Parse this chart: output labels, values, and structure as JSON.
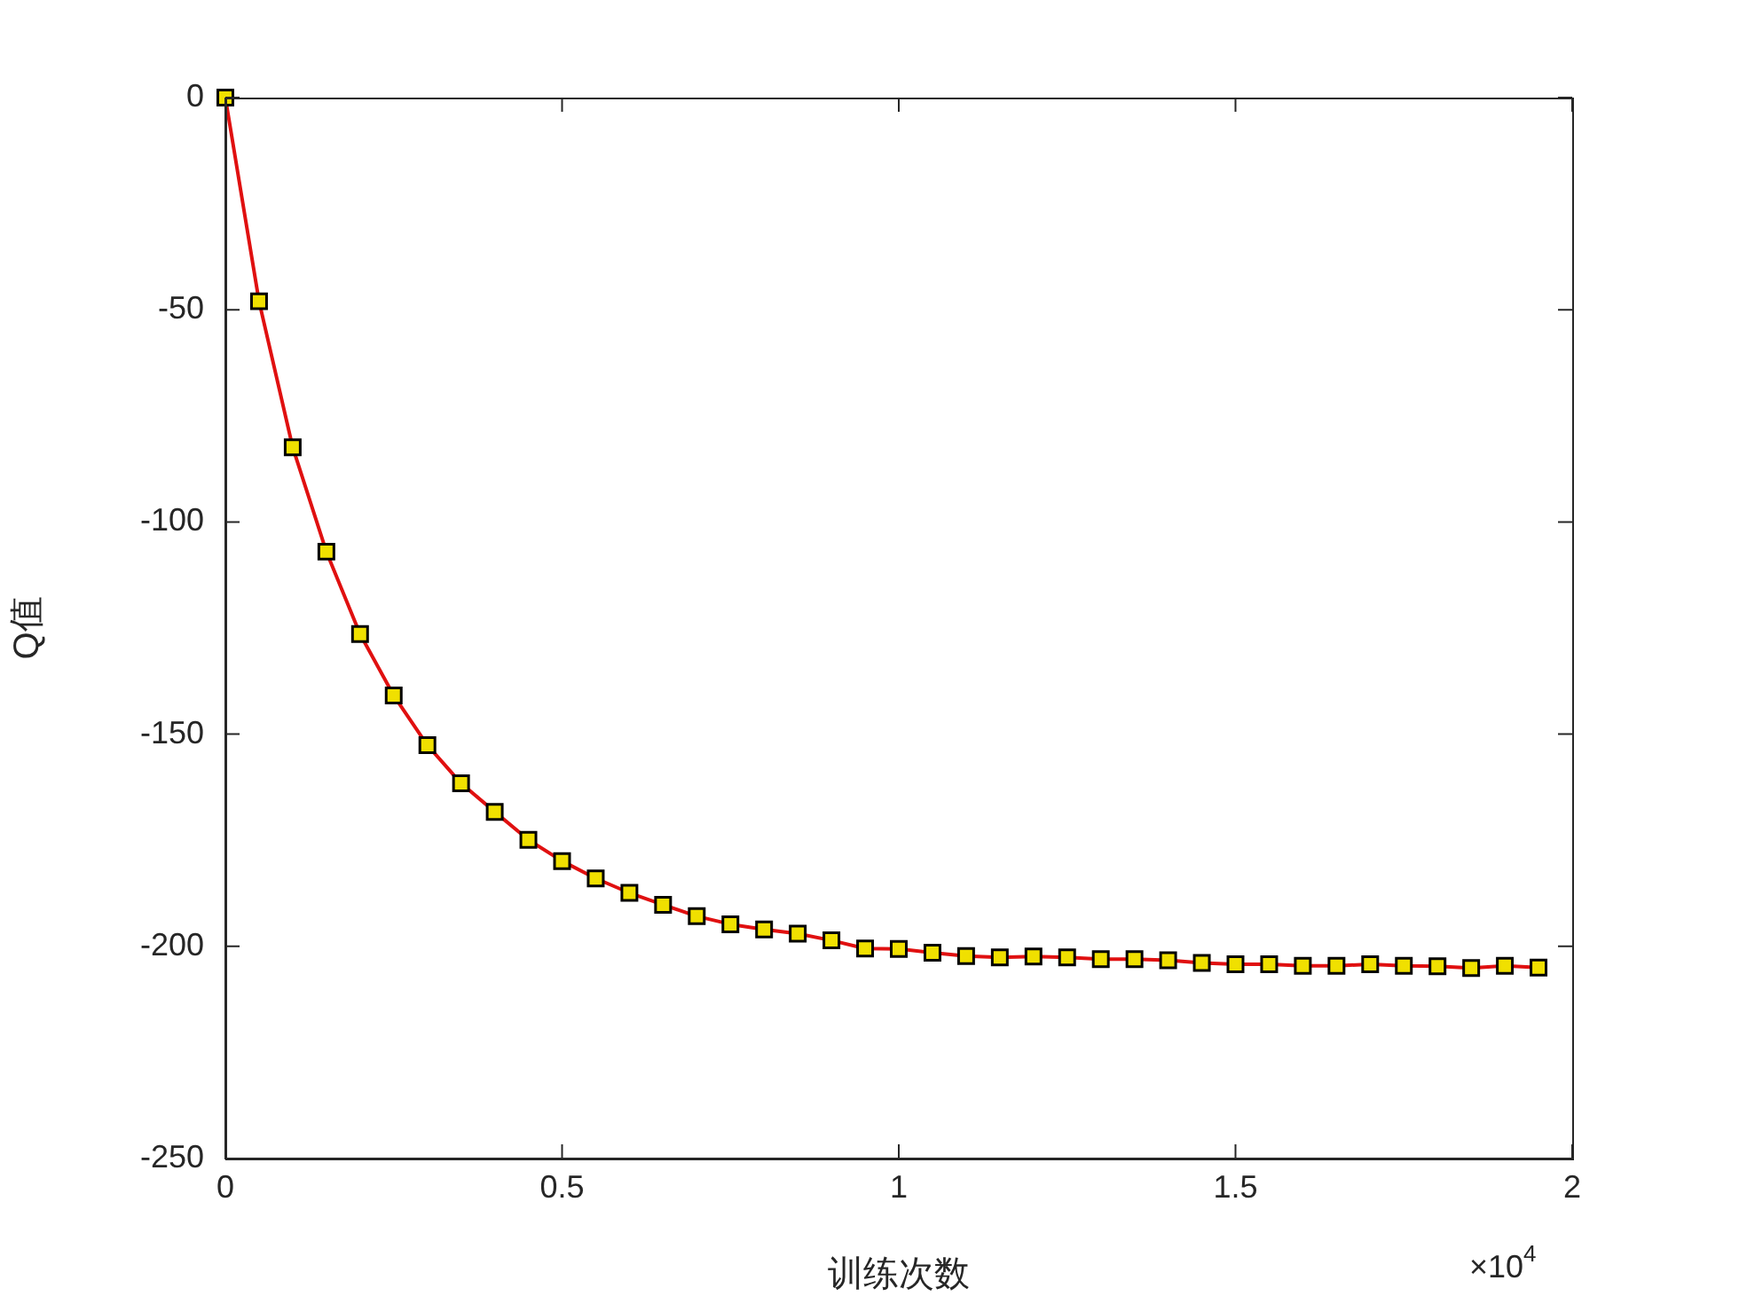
{
  "chart_data": {
    "type": "line",
    "xlabel": "训练次数",
    "ylabel": "Q值",
    "annotations": [
      "×10$^{4}$"
    ],
    "x": [
      0,
      0.05,
      0.1,
      0.15,
      0.2,
      0.25,
      0.3,
      0.35,
      0.4,
      0.45,
      0.5,
      0.55,
      0.6,
      0.65,
      0.7,
      0.75,
      0.8,
      0.85,
      0.9,
      0.95,
      1.0,
      1.05,
      1.1,
      1.15,
      1.2,
      1.25,
      1.3,
      1.35,
      1.4,
      1.45,
      1.5,
      1.55,
      1.6,
      1.65,
      1.7,
      1.75,
      1.8,
      1.85,
      1.9,
      1.95
    ],
    "series": [
      {
        "color": "#e01010",
        "values": [
          0,
          -48,
          -82.4,
          -107,
          -126.4,
          -140.9,
          -152.6,
          -161.6,
          -168.3,
          -174.9,
          -179.9,
          -184,
          -187.4,
          -190.2,
          -192.9,
          -194.8,
          -196,
          -197,
          -198.6,
          -200.5,
          -200.6,
          -201.5,
          -202.3,
          -202.6,
          -202.4,
          -202.6,
          -203,
          -203,
          -203.3,
          -203.9,
          -204.2,
          -204.2,
          -204.6,
          -204.6,
          -204.2,
          -204.6,
          -204.7,
          -205.1,
          -204.6,
          -205
        ]
      }
    ],
    "xlim": [
      0,
      2
    ],
    "xticks": [
      0,
      0.5,
      1,
      1.5,
      2
    ],
    "ylim": [
      -250,
      0
    ],
    "yticks": [
      -250,
      -200,
      -150,
      -100,
      -50,
      0
    ],
    "grid": false,
    "legend": false,
    "marker": "square",
    "line_style": "solid"
  }
}
